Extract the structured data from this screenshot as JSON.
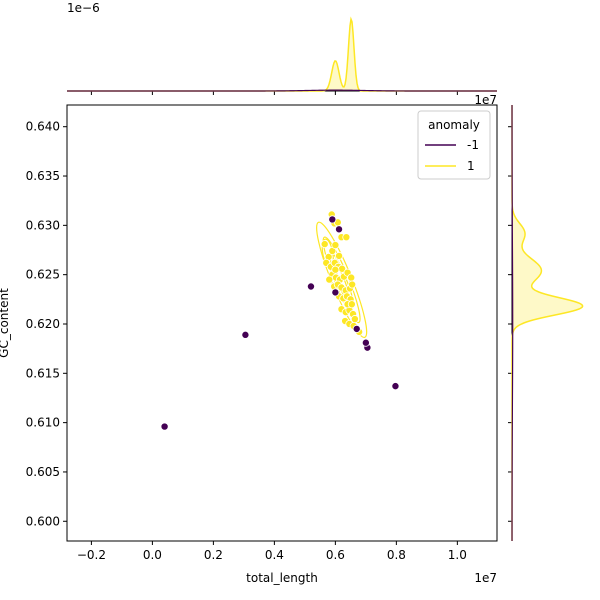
{
  "chart_data": {
    "type": "scatter",
    "subtype": "jointplot",
    "xlabel": "total_length",
    "ylabel": "GC_content",
    "x_offset_label": "1e7",
    "y_offset_label": "",
    "top_marginal_offset_label": "1e−6",
    "xlim": [
      -0.28,
      1.13
    ],
    "ylim": [
      0.598,
      0.6422
    ],
    "x_ticks": [
      -0.2,
      0.0,
      0.2,
      0.4,
      0.6,
      0.8,
      1.0
    ],
    "x_tick_labels": [
      "−0.2",
      "0.0",
      "0.2",
      "0.4",
      "0.6",
      "0.8",
      "1.0"
    ],
    "y_ticks": [
      0.6,
      0.605,
      0.61,
      0.615,
      0.62,
      0.625,
      0.63,
      0.635,
      0.64
    ],
    "y_tick_labels": [
      "0.600",
      "0.605",
      "0.610",
      "0.615",
      "0.620",
      "0.625",
      "0.630",
      "0.635",
      "0.640"
    ],
    "grid": false,
    "legend": {
      "title": "anomaly",
      "placement": "top-right",
      "entries": [
        {
          "label": "-1",
          "color": "#440154"
        },
        {
          "label": "1",
          "color": "#fde725"
        }
      ]
    },
    "series": [
      {
        "name": "-1",
        "color": "#440154",
        "points": [
          [
            0.04,
            0.6096
          ],
          [
            0.305,
            0.6189
          ],
          [
            0.52,
            0.6238
          ],
          [
            0.797,
            0.6137
          ],
          [
            0.705,
            0.6176
          ],
          [
            0.7,
            0.6181
          ],
          [
            0.67,
            0.6195
          ],
          [
            0.59,
            0.6306
          ],
          [
            0.612,
            0.6296
          ],
          [
            0.6,
            0.6232
          ]
        ]
      },
      {
        "name": "1",
        "color": "#fde725",
        "points": [
          [
            0.588,
            0.6311
          ],
          [
            0.597,
            0.6302
          ],
          [
            0.608,
            0.6303
          ],
          [
            0.62,
            0.6288
          ],
          [
            0.636,
            0.6288
          ],
          [
            0.565,
            0.6281
          ],
          [
            0.578,
            0.6268
          ],
          [
            0.59,
            0.6274
          ],
          [
            0.6,
            0.628
          ],
          [
            0.612,
            0.6269
          ],
          [
            0.57,
            0.6262
          ],
          [
            0.585,
            0.6258
          ],
          [
            0.598,
            0.6262
          ],
          [
            0.61,
            0.6258
          ],
          [
            0.622,
            0.6256
          ],
          [
            0.59,
            0.625
          ],
          [
            0.602,
            0.6247
          ],
          [
            0.615,
            0.6245
          ],
          [
            0.628,
            0.6248
          ],
          [
            0.64,
            0.6252
          ],
          [
            0.652,
            0.6247
          ],
          [
            0.596,
            0.6238
          ],
          [
            0.608,
            0.624
          ],
          [
            0.62,
            0.6237
          ],
          [
            0.634,
            0.6234
          ],
          [
            0.648,
            0.6236
          ],
          [
            0.655,
            0.624
          ],
          [
            0.612,
            0.6228
          ],
          [
            0.626,
            0.6226
          ],
          [
            0.638,
            0.6228
          ],
          [
            0.65,
            0.6225
          ],
          [
            0.62,
            0.6215
          ],
          [
            0.634,
            0.6212
          ],
          [
            0.646,
            0.6214
          ],
          [
            0.658,
            0.621
          ],
          [
            0.632,
            0.6203
          ],
          [
            0.646,
            0.62
          ],
          [
            0.66,
            0.6198
          ],
          [
            0.678,
            0.6192
          ],
          [
            0.64,
            0.622
          ],
          [
            0.6,
            0.6255
          ],
          [
            0.58,
            0.6245
          ],
          [
            0.654,
            0.622
          ],
          [
            0.664,
            0.6205
          ]
        ]
      }
    ]
  }
}
